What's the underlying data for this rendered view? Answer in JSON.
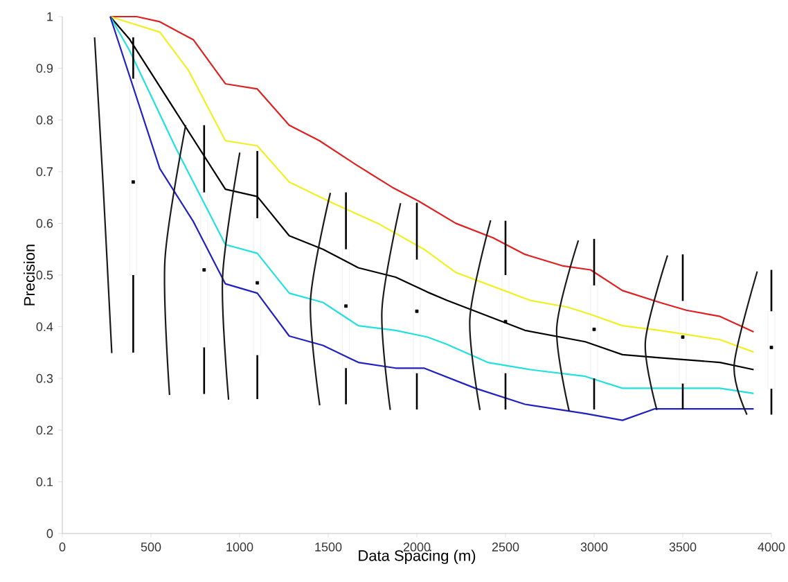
{
  "chart_data": {
    "type": "line",
    "xlabel": "Data Spacing (m)",
    "ylabel": "Precision",
    "xlim": [
      0,
      4000
    ],
    "xticks": [
      0,
      500,
      1000,
      1500,
      2000,
      2500,
      3000,
      3500,
      4000
    ],
    "ylim": [
      0,
      1
    ],
    "yticks": [
      0,
      0.1,
      0.2,
      0.3,
      0.4,
      0.5,
      0.6,
      0.7,
      0.8,
      0.9,
      1
    ],
    "grid": false,
    "marker": "none",
    "line_style": "solid",
    "series": [
      {
        "color": "#e02020",
        "x": [
          270,
          420,
          550,
          740,
          920,
          1100,
          1280,
          1450,
          1650,
          1860,
          2010,
          2220,
          2430,
          2610,
          2820,
          2980,
          3160,
          3370,
          3520,
          3710,
          3900
        ],
        "values": [
          1,
          1,
          0.99,
          0.955,
          0.87,
          0.86,
          0.79,
          0.76,
          0.715,
          0.67,
          0.643,
          0.6,
          0.572,
          0.54,
          0.518,
          0.51,
          0.47,
          0.447,
          0.432,
          0.42,
          0.39
        ]
      },
      {
        "color": "#f0f020",
        "x": [
          270,
          550,
          710,
          920,
          1100,
          1280,
          1520,
          1780,
          2040,
          2220,
          2430,
          2640,
          2850,
          2980,
          3160,
          3370,
          3710,
          3900
        ],
        "values": [
          1,
          0.97,
          0.897,
          0.76,
          0.75,
          0.68,
          0.64,
          0.6,
          0.55,
          0.505,
          0.478,
          0.451,
          0.438,
          0.424,
          0.402,
          0.393,
          0.375,
          0.351
        ]
      },
      {
        "color": "#000000",
        "x": [
          270,
          380,
          920,
          1100,
          1280,
          1470,
          1670,
          1880,
          2060,
          2170,
          2610,
          2950,
          3160,
          3370,
          3710,
          3900
        ],
        "values": [
          1,
          0.956,
          0.666,
          0.652,
          0.576,
          0.55,
          0.514,
          0.496,
          0.467,
          0.451,
          0.393,
          0.371,
          0.346,
          0.34,
          0.331,
          0.317
        ]
      },
      {
        "color": "#20e0e0",
        "x": [
          270,
          380,
          640,
          920,
          1100,
          1280,
          1470,
          1670,
          1880,
          2060,
          2170,
          2400,
          2640,
          2950,
          3160,
          3710,
          3900
        ],
        "values": [
          1,
          0.934,
          0.746,
          0.559,
          0.542,
          0.465,
          0.447,
          0.402,
          0.393,
          0.38,
          0.366,
          0.331,
          0.317,
          0.304,
          0.281,
          0.281,
          0.271
        ]
      },
      {
        "color": "#2020c0",
        "x": [
          270,
          550,
          740,
          920,
          1100,
          1280,
          1470,
          1670,
          1880,
          2040,
          2330,
          2610,
          2950,
          3160,
          3340,
          3900
        ],
        "values": [
          1,
          0.706,
          0.603,
          0.483,
          0.465,
          0.382,
          0.364,
          0.331,
          0.32,
          0.32,
          0.281,
          0.25,
          0.232,
          0.219,
          0.241,
          0.241
        ]
      },
      {
        "color": "#1a1a1a",
        "x": [
          182,
          230,
          279
        ],
        "values": [
          0.96,
          0.675,
          0.349
        ]
      },
      {
        "color": "#1a1a1a",
        "x": [
          696,
          579,
          605
        ],
        "values": [
          0.79,
          0.53,
          0.268
        ]
      },
      {
        "color": "#1a1a1a",
        "x": [
          1001,
          904,
          938
        ],
        "values": [
          0.737,
          0.496,
          0.259
        ]
      },
      {
        "color": "#1a1a1a",
        "x": [
          1512,
          1400,
          1452
        ],
        "values": [
          0.659,
          0.451,
          0.248
        ]
      },
      {
        "color": "#1a1a1a",
        "x": [
          1908,
          1803,
          1850
        ],
        "values": [
          0.639,
          0.433,
          0.239
        ]
      },
      {
        "color": "#1a1a1a",
        "x": [
          2416,
          2299,
          2356
        ],
        "values": [
          0.606,
          0.416,
          0.239
        ]
      },
      {
        "color": "#1a1a1a",
        "x": [
          2911,
          2789,
          2859
        ],
        "values": [
          0.567,
          0.398,
          0.237
        ]
      },
      {
        "color": "#1a1a1a",
        "x": [
          3414,
          3289,
          3354
        ],
        "values": [
          0.538,
          0.371,
          0.239
        ]
      },
      {
        "color": "#1a1a1a",
        "x": [
          3920,
          3790,
          3862
        ],
        "values": [
          0.507,
          0.326,
          0.23
        ]
      },
      {
        "type": "box",
        "color": "#000000",
        "x": [
          400,
          800,
          1100,
          1600,
          2000,
          2500,
          3000,
          3500,
          4000
        ],
        "boxes": [
          {
            "low": 0.35,
            "q1": 0.5,
            "median": 0.68,
            "q3": 0.88,
            "high": 0.96
          },
          {
            "low": 0.27,
            "q1": 0.36,
            "median": 0.51,
            "q3": 0.66,
            "high": 0.79
          },
          {
            "low": 0.26,
            "q1": 0.345,
            "median": 0.485,
            "q3": 0.61,
            "high": 0.74
          },
          {
            "low": 0.25,
            "q1": 0.32,
            "median": 0.44,
            "q3": 0.55,
            "high": 0.66
          },
          {
            "low": 0.24,
            "q1": 0.31,
            "median": 0.43,
            "q3": 0.53,
            "high": 0.64
          },
          {
            "low": 0.24,
            "q1": 0.31,
            "median": 0.41,
            "q3": 0.5,
            "high": 0.605
          },
          {
            "low": 0.24,
            "q1": 0.3,
            "median": 0.395,
            "q3": 0.48,
            "high": 0.57
          },
          {
            "low": 0.24,
            "q1": 0.29,
            "median": 0.38,
            "q3": 0.45,
            "high": 0.54
          },
          {
            "low": 0.23,
            "q1": 0.28,
            "median": 0.36,
            "q3": 0.43,
            "high": 0.51
          }
        ]
      }
    ]
  }
}
